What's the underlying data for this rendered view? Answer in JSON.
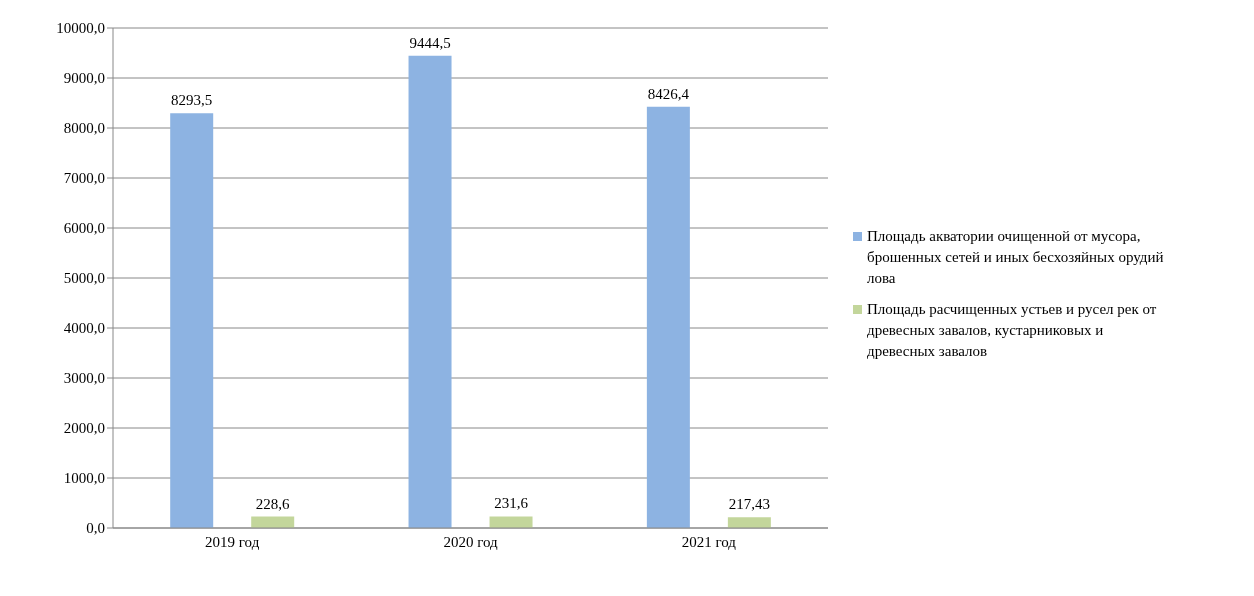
{
  "chart_data": {
    "type": "bar",
    "categories": [
      "2019 год",
      "2020 год",
      "2021 год"
    ],
    "series": [
      {
        "name": "Площадь акватории очищенной от мусора, брошенных сетей и иных бесхозяйных орудий лова",
        "color": "#8db3e2",
        "values": [
          8293.5,
          9444.5,
          8426.4
        ],
        "value_labels": [
          "8293,5",
          "9444,5",
          "8426,4"
        ]
      },
      {
        "name": "Площадь расчищенных устьев и русел рек от древесных завалов, кустарниковых и древесных завалов",
        "color": "#c3d69b",
        "values": [
          228.6,
          231.6,
          217.43
        ],
        "value_labels": [
          "228,6",
          "231,6",
          "217,43"
        ]
      }
    ],
    "ylim": [
      0,
      10000
    ],
    "yticks": [
      {
        "value": 0,
        "label": "0,0"
      },
      {
        "value": 1000,
        "label": "1000,0"
      },
      {
        "value": 2000,
        "label": "2000,0"
      },
      {
        "value": 3000,
        "label": "3000,0"
      },
      {
        "value": 4000,
        "label": "4000,0"
      },
      {
        "value": 5000,
        "label": "5000,0"
      },
      {
        "value": 6000,
        "label": "6000,0"
      },
      {
        "value": 7000,
        "label": "7000,0"
      },
      {
        "value": 8000,
        "label": "8000,0"
      },
      {
        "value": 9000,
        "label": "9000,0"
      },
      {
        "value": 10000,
        "label": "10000,0"
      }
    ],
    "grid": "y",
    "legend": "right"
  }
}
